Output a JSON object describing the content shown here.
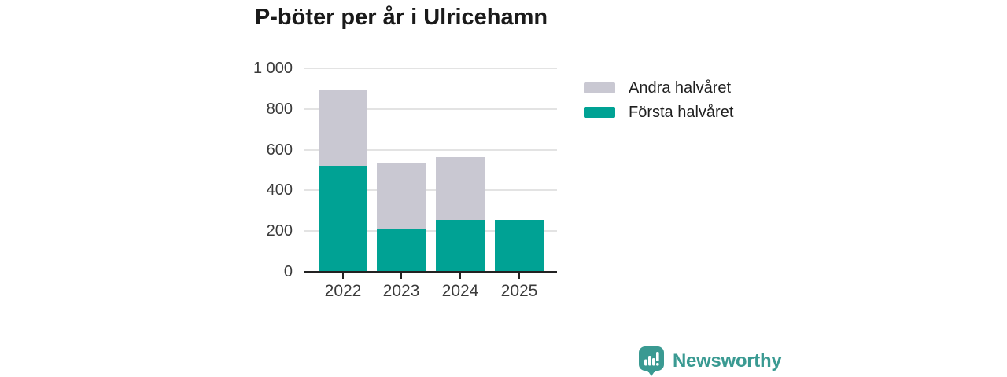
{
  "title": "P-böter per år i Ulricehamn",
  "chart_data": {
    "type": "bar",
    "stacked": true,
    "title": "P-böter per år i Ulricehamn",
    "categories": [
      "2022",
      "2023",
      "2024",
      "2025"
    ],
    "series": [
      {
        "name": "Första halvåret",
        "color": "#00a294",
        "values": [
          520,
          210,
          255,
          255
        ]
      },
      {
        "name": "Andra halvåret",
        "color": "#c9c8d2",
        "values": [
          375,
          325,
          310,
          0
        ]
      }
    ],
    "xlabel": "",
    "ylabel": "",
    "ylim": [
      0,
      1000
    ],
    "ytick_values": [
      0,
      200,
      400,
      600,
      800,
      1000
    ],
    "ytick_labels": [
      "0",
      "200",
      "400",
      "600",
      "800",
      "1 000"
    ],
    "grid": true,
    "legend_position": "right"
  },
  "legend": {
    "items": [
      {
        "label": "Andra halvåret",
        "color": "#c9c8d2"
      },
      {
        "label": "Första halvåret",
        "color": "#00a294"
      }
    ]
  },
  "branding": {
    "name": "Newsworthy",
    "text_color": "#3a9a92",
    "icon": "newsworthy-logo-icon",
    "icon_color": "#3a9a92"
  },
  "colors": {
    "accent_teal": "#00a294",
    "neutral_gray": "#c9c8d2",
    "gridline": "#e3e3e3",
    "axis": "#222222",
    "text": "#3a3a3a"
  }
}
